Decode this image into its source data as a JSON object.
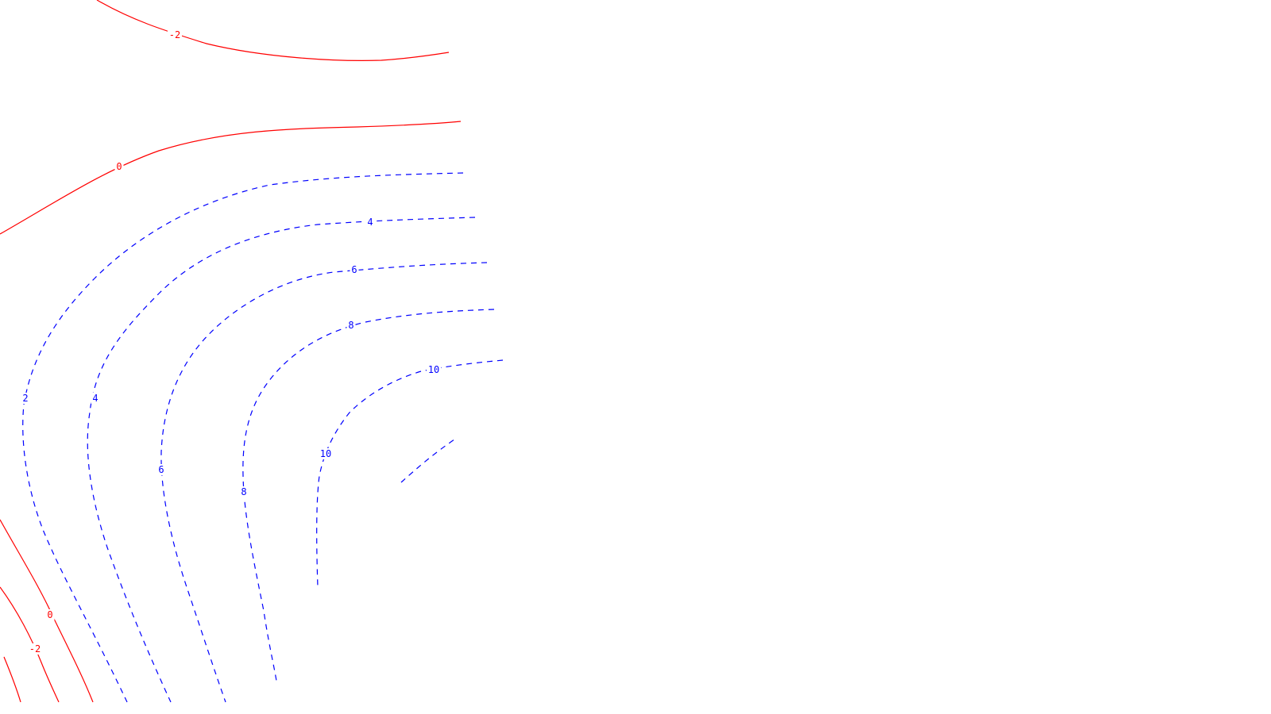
{
  "chart_data": {
    "type": "contour",
    "title": "",
    "xlabel": "",
    "ylabel": "",
    "grid": false,
    "legend": "none",
    "colors": {
      "negative_or_zero": "#ff0000",
      "positive": "#0000ff"
    },
    "levels": [
      {
        "level": -2,
        "label": "-2",
        "style": "solid",
        "color": "#ff0000",
        "paths": [
          "top-band",
          "bottom-left"
        ]
      },
      {
        "level": 0,
        "label": "0",
        "style": "solid",
        "color": "#ff0000",
        "paths": [
          "upper",
          "lower-left"
        ]
      },
      {
        "level": 2,
        "label": "2",
        "style": "dashed",
        "color": "#0000ff",
        "paths": [
          "main"
        ]
      },
      {
        "level": 4,
        "label": "4",
        "style": "dashed",
        "color": "#0000ff",
        "paths": [
          "main"
        ]
      },
      {
        "level": 6,
        "label": "6",
        "style": "dashed",
        "color": "#0000ff",
        "paths": [
          "main"
        ]
      },
      {
        "level": 8,
        "label": "8",
        "style": "dashed",
        "color": "#0000ff",
        "paths": [
          "main"
        ]
      },
      {
        "level": 10,
        "label": "10",
        "style": "dashed",
        "color": "#0000ff",
        "paths": [
          "main",
          "inner-fragment"
        ]
      }
    ]
  }
}
